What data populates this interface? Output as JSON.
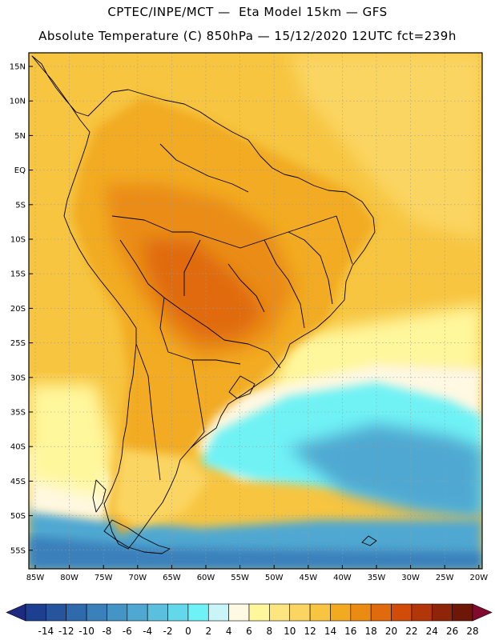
{
  "header": {
    "line1": "CPTEC/INPE/MCT —  Eta Model 15km — GFS",
    "line2": "Absolute Temperature (C) 850hPa — 15/12/2020 12UTC fct=239h"
  },
  "axes": {
    "lat_labels": [
      "15N",
      "10N",
      "5N",
      "EQ",
      "5S",
      "10S",
      "15S",
      "20S",
      "25S",
      "30S",
      "35S",
      "40S",
      "45S",
      "50S",
      "55S"
    ],
    "lon_labels": [
      "85W",
      "80W",
      "75W",
      "70W",
      "65W",
      "60W",
      "55W",
      "50W",
      "45W",
      "40W",
      "35W",
      "30W",
      "25W",
      "20W"
    ]
  },
  "colorbar": {
    "labels": [
      "-14",
      "-12",
      "-10",
      "-8",
      "-6",
      "-4",
      "-2",
      "0",
      "2",
      "4",
      "6",
      "8",
      "10",
      "12",
      "14",
      "16",
      "18",
      "20",
      "22",
      "24",
      "26",
      "28"
    ],
    "colors": [
      "#1c3f8f",
      "#26559e",
      "#2f6aad",
      "#3a80bb",
      "#4494c6",
      "#4fa8d1",
      "#5ac0de",
      "#62d8ea",
      "#6ff2f5",
      "#c9f5f8",
      "#fff8e2",
      "#fff79c",
      "#fde680",
      "#fbd562",
      "#f7c540",
      "#f2ab20",
      "#ea8c12",
      "#e06a0c",
      "#d14c08",
      "#b23608",
      "#8f2508",
      "#6e1706"
    ],
    "under_color": "#1d2a80",
    "over_color": "#820a2e"
  },
  "palette": {
    "ocean_warm": "#f7c540",
    "ocean_mid": "#fbd562",
    "land_warm": "#f2ab20",
    "land_hot": "#ea8c12",
    "land_very_hot": "#e06a0c",
    "cool_cream": "#fff8e2",
    "cool_yellow": "#fff79c",
    "cold_cyan": "#6ff2f5",
    "cold_blue": "#4fa8d1",
    "colder_blue": "#3a80bb"
  }
}
